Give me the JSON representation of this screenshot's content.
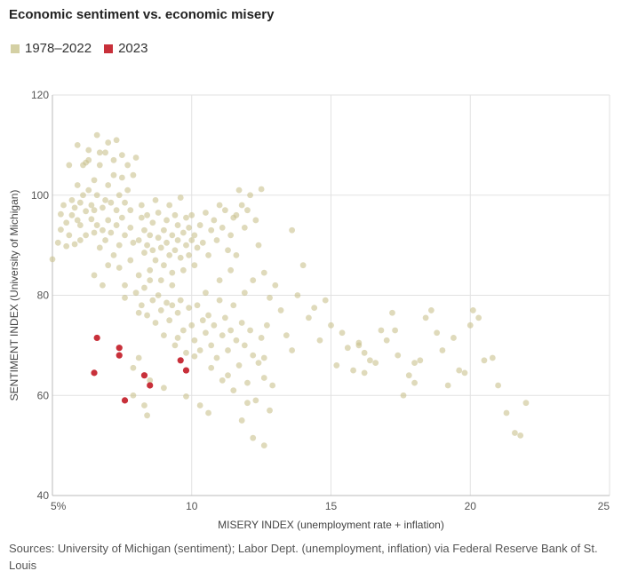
{
  "title": "Economic sentiment vs. economic misery",
  "legend": [
    {
      "label": "1978–2022",
      "color": "#d4d0a4"
    },
    {
      "label": "2023",
      "color": "#c8303a"
    }
  ],
  "source": "Sources: University of Michigan (sentiment); Labor Dept. (unemployment, inflation) via Federal Reserve Bank of St. Louis",
  "chart_data": {
    "type": "scatter",
    "xlabel": "MISERY INDEX (unemployment rate + inflation)",
    "ylabel": "SENTIMENT INDEX (University of Michigan)",
    "xlim": [
      5,
      25
    ],
    "ylim": [
      40,
      120
    ],
    "x_ticks": [
      5,
      10,
      15,
      20,
      25
    ],
    "x_tick_labels": [
      "5%",
      "10",
      "15",
      "20",
      "25"
    ],
    "y_ticks": [
      40,
      60,
      80,
      100,
      120
    ],
    "y_tick_labels": [
      "40",
      "60",
      "80",
      "100",
      "120"
    ],
    "grid": true,
    "series": [
      {
        "name": "1978–2022",
        "color": "#c9c28e",
        "points": [
          [
            5.0,
            87.2
          ],
          [
            5.2,
            90.5
          ],
          [
            5.3,
            93.1
          ],
          [
            5.3,
            96.2
          ],
          [
            5.4,
            98.0
          ],
          [
            5.5,
            89.8
          ],
          [
            5.5,
            94.5
          ],
          [
            5.6,
            92.0
          ],
          [
            5.7,
            96.0
          ],
          [
            5.7,
            99.0
          ],
          [
            5.8,
            90.2
          ],
          [
            5.8,
            97.5
          ],
          [
            5.9,
            95.0
          ],
          [
            5.9,
            102.0
          ],
          [
            6.0,
            91.0
          ],
          [
            6.0,
            94.0
          ],
          [
            6.0,
            98.5
          ],
          [
            6.1,
            100.0
          ],
          [
            6.1,
            106.0
          ],
          [
            6.2,
            92.0
          ],
          [
            6.2,
            96.8
          ],
          [
            6.3,
            101.0
          ],
          [
            6.3,
            107.0
          ],
          [
            6.3,
            109.0
          ],
          [
            6.4,
            95.2
          ],
          [
            6.4,
            98.0
          ],
          [
            6.5,
            92.5
          ],
          [
            6.5,
            97.0
          ],
          [
            6.5,
            103.0
          ],
          [
            6.6,
            94.0
          ],
          [
            6.6,
            100.0
          ],
          [
            6.7,
            89.5
          ],
          [
            6.7,
            106.0
          ],
          [
            6.7,
            108.5
          ],
          [
            6.8,
            93.0
          ],
          [
            6.8,
            97.5
          ],
          [
            6.9,
            91.0
          ],
          [
            6.9,
            99.0
          ],
          [
            7.0,
            95.0
          ],
          [
            7.0,
            102.0
          ],
          [
            7.0,
            110.5
          ],
          [
            7.1,
            92.5
          ],
          [
            7.1,
            98.5
          ],
          [
            7.2,
            104.0
          ],
          [
            7.2,
            107.0
          ],
          [
            7.3,
            94.0
          ],
          [
            7.3,
            97.0
          ],
          [
            7.4,
            90.0
          ],
          [
            7.4,
            100.0
          ],
          [
            7.5,
            95.5
          ],
          [
            7.5,
            103.5
          ],
          [
            7.5,
            108.0
          ],
          [
            7.6,
            92.0
          ],
          [
            7.6,
            98.5
          ],
          [
            7.7,
            101.0
          ],
          [
            7.7,
            106.0
          ],
          [
            7.8,
            93.5
          ],
          [
            7.8,
            97.0
          ],
          [
            7.9,
            90.5
          ],
          [
            7.9,
            104.0
          ],
          [
            8.0,
            107.5
          ],
          [
            5.6,
            106.0
          ],
          [
            5.9,
            110.0
          ],
          [
            6.6,
            112.0
          ],
          [
            6.2,
            106.5
          ],
          [
            7.3,
            111.0
          ],
          [
            6.9,
            108.5
          ],
          [
            8.1,
            91.0
          ],
          [
            8.2,
            95.5
          ],
          [
            8.2,
            98.0
          ],
          [
            8.3,
            88.5
          ],
          [
            8.3,
            93.0
          ],
          [
            8.4,
            90.0
          ],
          [
            8.4,
            96.0
          ],
          [
            8.5,
            85.0
          ],
          [
            8.5,
            92.0
          ],
          [
            8.6,
            89.0
          ],
          [
            8.6,
            94.5
          ],
          [
            8.7,
            87.0
          ],
          [
            8.7,
            99.0
          ],
          [
            8.8,
            91.5
          ],
          [
            8.8,
            96.5
          ],
          [
            8.9,
            83.0
          ],
          [
            8.9,
            89.5
          ],
          [
            9.0,
            93.0
          ],
          [
            9.0,
            86.0
          ],
          [
            9.1,
            90.5
          ],
          [
            9.1,
            95.0
          ],
          [
            9.2,
            88.0
          ],
          [
            9.2,
            98.0
          ],
          [
            9.3,
            92.0
          ],
          [
            9.3,
            84.5
          ],
          [
            9.4,
            89.0
          ],
          [
            9.4,
            96.0
          ],
          [
            9.5,
            91.0
          ],
          [
            9.5,
            94.0
          ],
          [
            9.6,
            87.5
          ],
          [
            9.6,
            99.5
          ],
          [
            9.7,
            92.5
          ],
          [
            9.7,
            85.0
          ],
          [
            9.8,
            90.0
          ],
          [
            9.8,
            95.5
          ],
          [
            9.9,
            88.0
          ],
          [
            9.9,
            93.5
          ],
          [
            10.0,
            91.0
          ],
          [
            10.0,
            96.0
          ],
          [
            10.1,
            86.0
          ],
          [
            10.1,
            92.0
          ],
          [
            10.2,
            89.5
          ],
          [
            10.3,
            94.0
          ],
          [
            10.4,
            90.5
          ],
          [
            10.5,
            96.5
          ],
          [
            10.6,
            88.0
          ],
          [
            10.7,
            93.0
          ],
          [
            10.8,
            95.0
          ],
          [
            10.9,
            91.0
          ],
          [
            11.0,
            98.0
          ],
          [
            11.1,
            93.5
          ],
          [
            11.2,
            97.0
          ],
          [
            11.3,
            89.0
          ],
          [
            11.4,
            92.0
          ],
          [
            11.5,
            95.5
          ],
          [
            11.6,
            96.0
          ],
          [
            11.7,
            101.0
          ],
          [
            11.8,
            98.0
          ],
          [
            11.9,
            93.5
          ],
          [
            12.0,
            97.0
          ],
          [
            12.1,
            100.0
          ],
          [
            12.3,
            95.0
          ],
          [
            12.5,
            101.2
          ],
          [
            7.2,
            88.0
          ],
          [
            7.4,
            85.5
          ],
          [
            7.6,
            82.0
          ],
          [
            7.8,
            87.0
          ],
          [
            8.0,
            80.5
          ],
          [
            8.1,
            84.0
          ],
          [
            8.2,
            78.0
          ],
          [
            8.3,
            81.5
          ],
          [
            8.4,
            76.0
          ],
          [
            8.5,
            83.0
          ],
          [
            8.6,
            79.0
          ],
          [
            8.7,
            74.5
          ],
          [
            8.8,
            80.0
          ],
          [
            8.9,
            77.0
          ],
          [
            9.0,
            72.0
          ],
          [
            9.1,
            78.5
          ],
          [
            9.2,
            75.0
          ],
          [
            9.3,
            82.0
          ],
          [
            9.4,
            70.0
          ],
          [
            9.5,
            76.5
          ],
          [
            9.6,
            79.0
          ],
          [
            9.7,
            73.0
          ],
          [
            9.8,
            68.5
          ],
          [
            9.9,
            77.5
          ],
          [
            10.0,
            74.0
          ],
          [
            10.1,
            71.0
          ],
          [
            10.2,
            78.0
          ],
          [
            10.3,
            69.0
          ],
          [
            10.4,
            75.0
          ],
          [
            10.5,
            72.5
          ],
          [
            10.6,
            76.0
          ],
          [
            10.7,
            70.0
          ],
          [
            10.8,
            74.0
          ],
          [
            10.9,
            67.5
          ],
          [
            11.0,
            79.0
          ],
          [
            11.1,
            72.0
          ],
          [
            11.2,
            75.5
          ],
          [
            11.3,
            69.0
          ],
          [
            11.4,
            73.0
          ],
          [
            11.5,
            78.0
          ],
          [
            11.6,
            71.0
          ],
          [
            11.7,
            66.0
          ],
          [
            11.8,
            74.5
          ],
          [
            11.9,
            70.0
          ],
          [
            12.0,
            62.5
          ],
          [
            12.1,
            73.0
          ],
          [
            12.2,
            68.0
          ],
          [
            12.3,
            59.0
          ],
          [
            12.4,
            66.5
          ],
          [
            12.5,
            71.5
          ],
          [
            12.6,
            63.5
          ],
          [
            12.7,
            74.0
          ],
          [
            11.4,
            85.0
          ],
          [
            11.6,
            88.0
          ],
          [
            11.9,
            80.5
          ],
          [
            12.2,
            83.0
          ],
          [
            12.4,
            90.0
          ],
          [
            12.6,
            84.5
          ],
          [
            12.8,
            79.5
          ],
          [
            13.0,
            82.0
          ],
          [
            13.2,
            77.0
          ],
          [
            13.4,
            72.0
          ],
          [
            13.6,
            93.0
          ],
          [
            13.8,
            80.0
          ],
          [
            14.0,
            86.0
          ],
          [
            14.2,
            75.5
          ],
          [
            14.4,
            77.5
          ],
          [
            14.6,
            71.0
          ],
          [
            14.8,
            79.0
          ],
          [
            15.0,
            74.0
          ],
          [
            15.2,
            66.0
          ],
          [
            15.4,
            72.5
          ],
          [
            15.6,
            69.5
          ],
          [
            15.8,
            65.0
          ],
          [
            16.0,
            70.0
          ],
          [
            16.2,
            64.5
          ],
          [
            16.4,
            67.0
          ],
          [
            16.6,
            66.5
          ],
          [
            16.8,
            73.0
          ],
          [
            17.0,
            71.0
          ],
          [
            17.2,
            76.5
          ],
          [
            17.4,
            68.0
          ],
          [
            17.6,
            60.0
          ],
          [
            17.8,
            64.0
          ],
          [
            18.0,
            62.5
          ],
          [
            18.2,
            67.0
          ],
          [
            18.4,
            75.5
          ],
          [
            18.6,
            77.0
          ],
          [
            18.8,
            72.5
          ],
          [
            19.0,
            69.0
          ],
          [
            19.2,
            62.0
          ],
          [
            19.4,
            71.5
          ],
          [
            19.6,
            65.0
          ],
          [
            19.8,
            64.5
          ],
          [
            20.1,
            77.0
          ],
          [
            20.3,
            75.5
          ],
          [
            20.5,
            67.0
          ],
          [
            20.8,
            67.5
          ],
          [
            21.0,
            62.0
          ],
          [
            21.3,
            56.5
          ],
          [
            21.6,
            52.5
          ],
          [
            21.8,
            52.0
          ],
          [
            22.0,
            58.5
          ],
          [
            20.0,
            74.0
          ],
          [
            18.0,
            66.5
          ],
          [
            17.3,
            73.0
          ],
          [
            16.2,
            68.5
          ],
          [
            16.0,
            70.5
          ],
          [
            7.9,
            60.0
          ],
          [
            8.3,
            58.0
          ],
          [
            8.5,
            63.0
          ],
          [
            8.1,
            67.5
          ],
          [
            9.0,
            61.5
          ],
          [
            9.8,
            59.8
          ],
          [
            10.3,
            58.0
          ],
          [
            10.6,
            56.5
          ],
          [
            11.3,
            64.0
          ],
          [
            11.5,
            61.0
          ],
          [
            11.8,
            55.0
          ],
          [
            12.0,
            58.5
          ],
          [
            12.2,
            51.5
          ],
          [
            12.6,
            50.0
          ],
          [
            12.8,
            57.0
          ],
          [
            10.7,
            65.5
          ],
          [
            11.1,
            63.0
          ],
          [
            12.9,
            62.0
          ],
          [
            13.6,
            69.0
          ],
          [
            12.6,
            67.5
          ],
          [
            7.9,
            65.5
          ],
          [
            8.4,
            56.0
          ],
          [
            10.1,
            67.8
          ],
          [
            9.5,
            71.5
          ],
          [
            11.0,
            83.0
          ],
          [
            10.5,
            80.5
          ],
          [
            9.3,
            78.0
          ],
          [
            8.1,
            76.5
          ],
          [
            7.6,
            79.5
          ],
          [
            6.8,
            82.0
          ],
          [
            7.0,
            86.0
          ],
          [
            6.5,
            84.0
          ]
        ]
      },
      {
        "name": "2023",
        "color": "#c8303a",
        "points": [
          [
            6.6,
            71.5
          ],
          [
            7.4,
            69.5
          ],
          [
            7.4,
            68.0
          ],
          [
            6.5,
            64.5
          ],
          [
            7.6,
            59.0
          ],
          [
            8.3,
            64.0
          ],
          [
            8.5,
            62.0
          ],
          [
            9.6,
            67.0
          ],
          [
            9.8,
            65.0
          ]
        ]
      }
    ]
  }
}
